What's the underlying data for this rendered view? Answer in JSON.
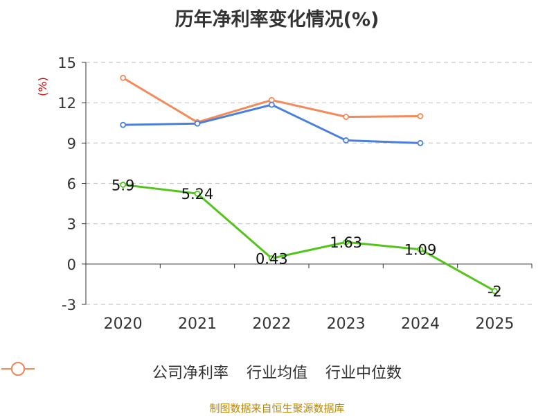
{
  "title": "历年净利率变化情况(%)",
  "source": "制图数据来自恒生聚源数据库",
  "chart_data": {
    "type": "line",
    "categories": [
      "2020",
      "2021",
      "2022",
      "2023",
      "2024",
      "2025"
    ],
    "ylabel": "(%)",
    "ylim": [
      -3,
      15
    ],
    "yticks": [
      15,
      12,
      9,
      6,
      3,
      0,
      -3
    ],
    "grid": true,
    "legend_position": "bottom",
    "series": [
      {
        "name": "公司净利率",
        "color": "#52c41a",
        "values": [
          5.9,
          5.24,
          0.43,
          1.63,
          1.09,
          -2
        ],
        "labels": [
          "5.9",
          "5.24",
          "0.43",
          "1.63",
          "1.09",
          "-2"
        ]
      },
      {
        "name": "行业均值",
        "color": "#4a7fdc",
        "values": [
          10.35,
          10.45,
          11.85,
          9.2,
          9.0,
          null
        ]
      },
      {
        "name": "行业中位数",
        "color": "#f48a5a",
        "values": [
          13.85,
          10.55,
          12.2,
          10.95,
          11.0,
          null
        ]
      }
    ]
  }
}
